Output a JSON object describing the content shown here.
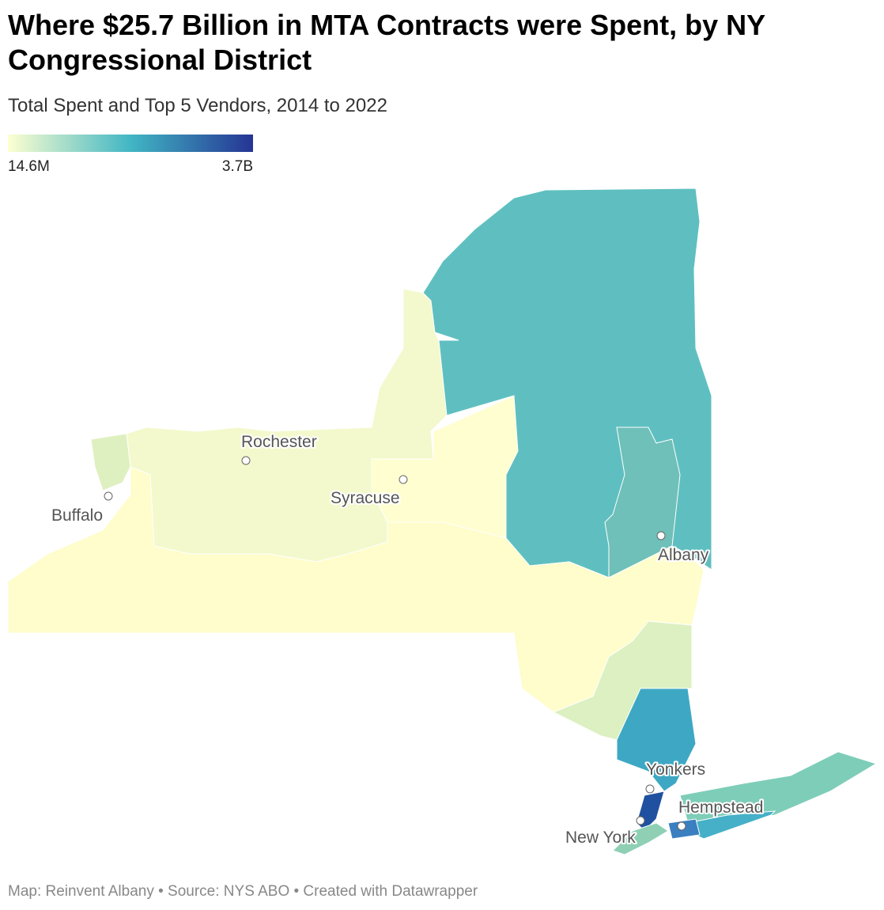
{
  "header": {
    "title": "Where $25.7 Billion in MTA Contracts were Spent, by NY Congressional District",
    "subtitle": "Total Spent and Top 5 Vendors, 2014 to 2022"
  },
  "legend": {
    "min": "14.6M",
    "max": "3.7B"
  },
  "cities": [
    {
      "label": "Rochester"
    },
    {
      "label": "Buffalo"
    },
    {
      "label": "Syracuse"
    },
    {
      "label": "Albany"
    },
    {
      "label": "Yonkers"
    },
    {
      "label": "Hempstead"
    },
    {
      "label": "New York"
    }
  ],
  "footer": "Map: Reinvent Albany • Source: NYS ABO • Created with Datawrapper"
}
